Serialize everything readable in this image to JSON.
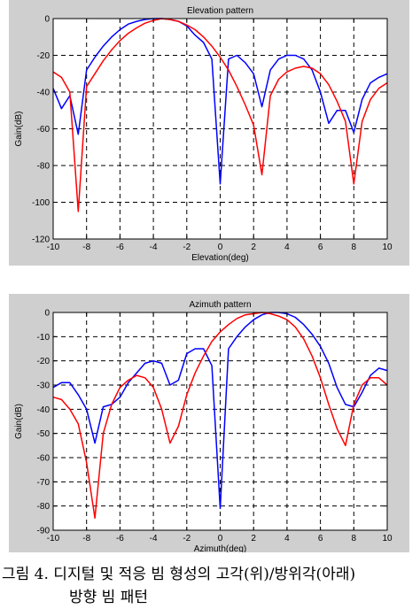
{
  "chart_data": [
    {
      "type": "line",
      "title": "Elevation pattern",
      "xlabel": "Elevation(deg)",
      "ylabel": "Gain(dB)",
      "xlim": [
        -10,
        10
      ],
      "ylim": [
        -120,
        0
      ],
      "xticks": [
        -10,
        -8,
        -6,
        -4,
        -2,
        0,
        2,
        4,
        6,
        8,
        10
      ],
      "yticks": [
        0,
        -20,
        -40,
        -60,
        -80,
        -100,
        -120
      ],
      "grid": true,
      "series": [
        {
          "color": "#0000ff",
          "x": [
            -10,
            -9.5,
            -9,
            -8.5,
            -8,
            -7.5,
            -7,
            -6.5,
            -6,
            -5.5,
            -5,
            -4.5,
            -4,
            -3.5,
            -3,
            -2.5,
            -2,
            -1.5,
            -1,
            -0.5,
            0,
            0.5,
            1,
            1.5,
            2,
            2.5,
            3,
            3.5,
            4,
            4.5,
            5,
            5.5,
            6,
            6.5,
            7,
            7.5,
            8,
            8.5,
            9,
            9.5,
            10
          ],
          "y": [
            -38,
            -49,
            -42,
            -63,
            -28,
            -21,
            -15,
            -10,
            -6,
            -3,
            -1.5,
            -0.5,
            0,
            0,
            -0.5,
            -1.5,
            -4,
            -9,
            -13,
            -22,
            -90,
            -22,
            -20,
            -24,
            -30,
            -48,
            -28,
            -22,
            -20,
            -20,
            -22,
            -28,
            -40,
            -57,
            -50,
            -50,
            -62,
            -44,
            -35,
            -32,
            -30
          ]
        },
        {
          "color": "#ff0000",
          "x": [
            -10,
            -9.5,
            -9,
            -8.5,
            -8,
            -7.5,
            -7,
            -6.5,
            -6,
            -5.5,
            -5,
            -4.5,
            -4,
            -3.5,
            -3,
            -2.5,
            -2,
            -1.5,
            -1,
            -0.5,
            0,
            0.5,
            1,
            1.5,
            2,
            2.5,
            3,
            3.5,
            4,
            4.5,
            5,
            5.5,
            6,
            6.5,
            7,
            7.5,
            8,
            8.5,
            9,
            9.5,
            10
          ],
          "y": [
            -29,
            -32,
            -40,
            -105,
            -37,
            -30,
            -23,
            -17,
            -12,
            -8,
            -5,
            -2.5,
            -1,
            0,
            -0.5,
            -1.5,
            -3.5,
            -6,
            -10,
            -15,
            -21,
            -28,
            -37,
            -47,
            -58,
            -85,
            -42,
            -33,
            -29,
            -27,
            -26,
            -27,
            -30,
            -36,
            -45,
            -56,
            -90,
            -56,
            -44,
            -38,
            -35
          ]
        }
      ]
    },
    {
      "type": "line",
      "title": "Azimuth pattern",
      "xlabel": "Azimuth(deg)",
      "ylabel": "Gain(dB)",
      "xlim": [
        -10,
        10
      ],
      "ylim": [
        -90,
        0
      ],
      "xticks": [
        -10,
        -8,
        -6,
        -4,
        -2,
        0,
        2,
        4,
        6,
        8,
        10
      ],
      "yticks": [
        0,
        -10,
        -20,
        -30,
        -40,
        -50,
        -60,
        -70,
        -80,
        -90
      ],
      "grid": true,
      "series": [
        {
          "color": "#0000ff",
          "x": [
            -10,
            -9.5,
            -9,
            -8.5,
            -8,
            -7.5,
            -7,
            -6.5,
            -6,
            -5.5,
            -5,
            -4.5,
            -4,
            -3.5,
            -3,
            -2.5,
            -2,
            -1.5,
            -1,
            -0.5,
            0,
            0.5,
            1,
            1.5,
            2,
            2.5,
            3,
            3.5,
            4,
            4.5,
            5,
            5.5,
            6,
            6.5,
            7,
            7.5,
            8,
            8.5,
            9,
            9.5,
            10
          ],
          "y": [
            -31,
            -29,
            -29,
            -34,
            -40,
            -54,
            -39,
            -38,
            -35,
            -29,
            -25,
            -21,
            -20,
            -21,
            -30,
            -28,
            -17,
            -15,
            -15,
            -22,
            -81,
            -15,
            -10,
            -6,
            -3,
            -1,
            0,
            0,
            -0.5,
            -2,
            -5,
            -9,
            -14,
            -21,
            -31,
            -38,
            -39,
            -33,
            -26,
            -23,
            -24
          ]
        },
        {
          "color": "#ff0000",
          "x": [
            -10,
            -9.5,
            -9,
            -8.5,
            -8,
            -7.5,
            -7,
            -6.5,
            -6,
            -5.5,
            -5,
            -4.5,
            -4,
            -3.5,
            -3,
            -2.5,
            -2,
            -1.5,
            -1,
            -0.5,
            0,
            0.5,
            1,
            1.5,
            2,
            2.5,
            3,
            3.5,
            4,
            4.5,
            5,
            5.5,
            6,
            6.5,
            7,
            7.5,
            8,
            8.5,
            9,
            9.5,
            10
          ],
          "y": [
            -35,
            -36,
            -40,
            -46,
            -62,
            -85,
            -50,
            -38,
            -31,
            -28,
            -26,
            -27,
            -31,
            -40,
            -54,
            -47,
            -34,
            -25,
            -18,
            -12,
            -8,
            -5,
            -2.5,
            -1,
            -0.5,
            0,
            -0.5,
            -1.5,
            -3,
            -6,
            -11,
            -18,
            -27,
            -38,
            -48,
            -55,
            -38,
            -30,
            -27,
            -27,
            -30
          ]
        }
      ]
    }
  ],
  "caption": {
    "line1": "그림 4. 디지털 및 적응 빔 형성의 고각(위)/방위각(아래)",
    "line2": "방향 빔 패턴"
  }
}
